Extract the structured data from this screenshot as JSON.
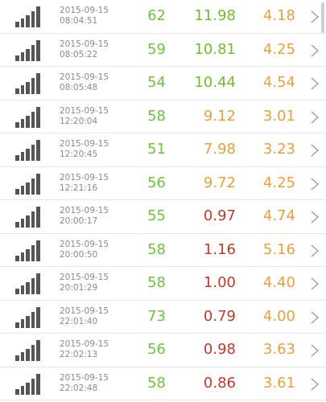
{
  "colors": {
    "level": "#6cc53a",
    "good": "#74bd2a",
    "bad": "#c0392b",
    "warn": "#e8a13a",
    "muted": "#8a8a8a"
  },
  "icons": {
    "signal": "signal-strength-icon",
    "chevron": "chevron-right-icon"
  },
  "records": [
    {
      "date": "2015-09-15",
      "time": "08:04:51",
      "v1": "62",
      "v2": "11.98",
      "v2_color": "good",
      "v3": "4.18"
    },
    {
      "date": "2015-09-15",
      "time": "08:05:22",
      "v1": "59",
      "v2": "10.81",
      "v2_color": "good",
      "v3": "4.25"
    },
    {
      "date": "2015-09-15",
      "time": "08:05:48",
      "v1": "54",
      "v2": "10.44",
      "v2_color": "good",
      "v3": "4.54"
    },
    {
      "date": "2015-09-15",
      "time": "12:20:04",
      "v1": "58",
      "v2": "9.12",
      "v2_color": "warn",
      "v3": "3.01"
    },
    {
      "date": "2015-09-15",
      "time": "12:20:45",
      "v1": "51",
      "v2": "7.98",
      "v2_color": "warn",
      "v3": "3.23"
    },
    {
      "date": "2015-09-15",
      "time": "12:21:16",
      "v1": "56",
      "v2": "9.72",
      "v2_color": "warn",
      "v3": "4.25"
    },
    {
      "date": "2015-09-15",
      "time": "20:00:17",
      "v1": "55",
      "v2": "0.97",
      "v2_color": "bad",
      "v3": "4.74"
    },
    {
      "date": "2015-09-15",
      "time": "20:00:50",
      "v1": "58",
      "v2": "1.16",
      "v2_color": "bad",
      "v3": "5.16"
    },
    {
      "date": "2015-09-15",
      "time": "20:01:29",
      "v1": "58",
      "v2": "1.00",
      "v2_color": "bad",
      "v3": "4.40"
    },
    {
      "date": "2015-09-15",
      "time": "22:01:40",
      "v1": "73",
      "v2": "0.79",
      "v2_color": "bad",
      "v3": "4.00"
    },
    {
      "date": "2015-09-15",
      "time": "22:02:13",
      "v1": "56",
      "v2": "0.98",
      "v2_color": "bad",
      "v3": "3.63"
    },
    {
      "date": "2015-09-15",
      "time": "22:02:48",
      "v1": "58",
      "v2": "0.86",
      "v2_color": "bad",
      "v3": "3.61"
    }
  ]
}
